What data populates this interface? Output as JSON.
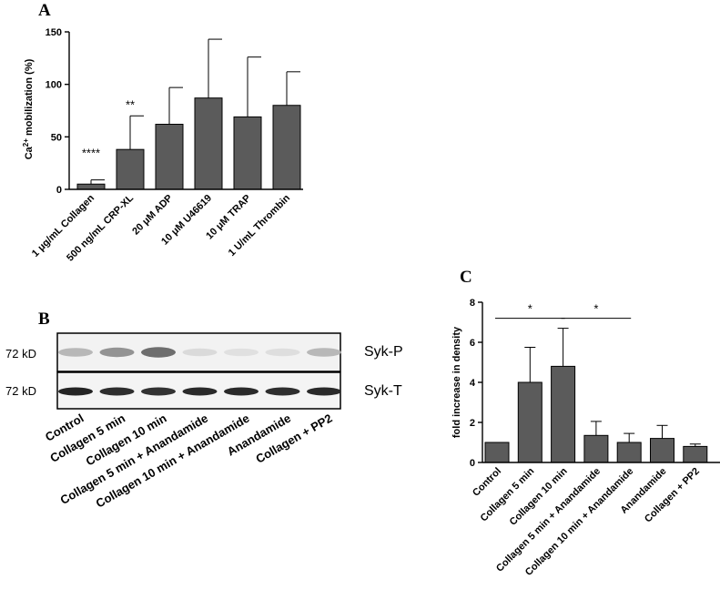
{
  "panel_a": {
    "letter": "A",
    "chart_data": {
      "type": "bar",
      "ylabel_base": "Ca",
      "ylabel_sup": "2+",
      "ylabel_rest": " mobilization (%)",
      "ylim": [
        0,
        150
      ],
      "yticks": [
        "0",
        "50",
        "100",
        "150"
      ],
      "categories": [
        "1 μg/mL Collagen",
        "500 ng/mL CRP-XL",
        "20 μM ADP",
        "10 μM U46619",
        "10 μM TRAP",
        "1 U/mL Thrombin"
      ],
      "values": [
        5,
        38,
        62,
        87,
        69,
        80
      ],
      "errors": [
        4,
        32,
        35,
        56,
        57,
        32
      ],
      "annotations": [
        "****",
        "**",
        "",
        "",
        "",
        ""
      ]
    }
  },
  "panel_b": {
    "letter": "B",
    "row_labels": [
      "72 kD",
      "72 kD"
    ],
    "bands": [
      "Syk-P",
      "Syk-T"
    ],
    "lanes": [
      "Control",
      "Collagen 5 min",
      "Collagen 10 min",
      "Collagen 5 min + Anandamide",
      "Collagen 10 min + Anandamide",
      "Anandamide",
      "Collagen + PP2"
    ],
    "band_intensity_top": [
      0.35,
      0.6,
      0.85,
      0.12,
      0.08,
      0.1,
      0.35
    ],
    "band_intensity_bottom": [
      0.95,
      0.9,
      0.88,
      0.92,
      0.92,
      0.9,
      0.92
    ]
  },
  "panel_c": {
    "letter": "C",
    "chart_data": {
      "type": "bar",
      "ylabel": "fold increase in density",
      "ylim": [
        0,
        8
      ],
      "yticks": [
        "0",
        "2",
        "4",
        "6",
        "8"
      ],
      "categories": [
        "Control",
        "Collagen 5 min",
        "Collagen 10 min",
        "Collagen 5 min + Anandamide",
        "Collagen 10 min + Anandamide",
        "Anandamide",
        "Collagen + PP2"
      ],
      "values": [
        1.0,
        4.0,
        4.8,
        1.35,
        1.0,
        1.2,
        0.8
      ],
      "errors": [
        0,
        1.75,
        1.9,
        0.7,
        0.45,
        0.65,
        0.12
      ],
      "significance": [
        {
          "from": 0,
          "to": 2,
          "label": "*",
          "y": 7.2
        },
        {
          "from": 2,
          "to": 4,
          "label": "*",
          "y": 7.2
        }
      ]
    }
  }
}
